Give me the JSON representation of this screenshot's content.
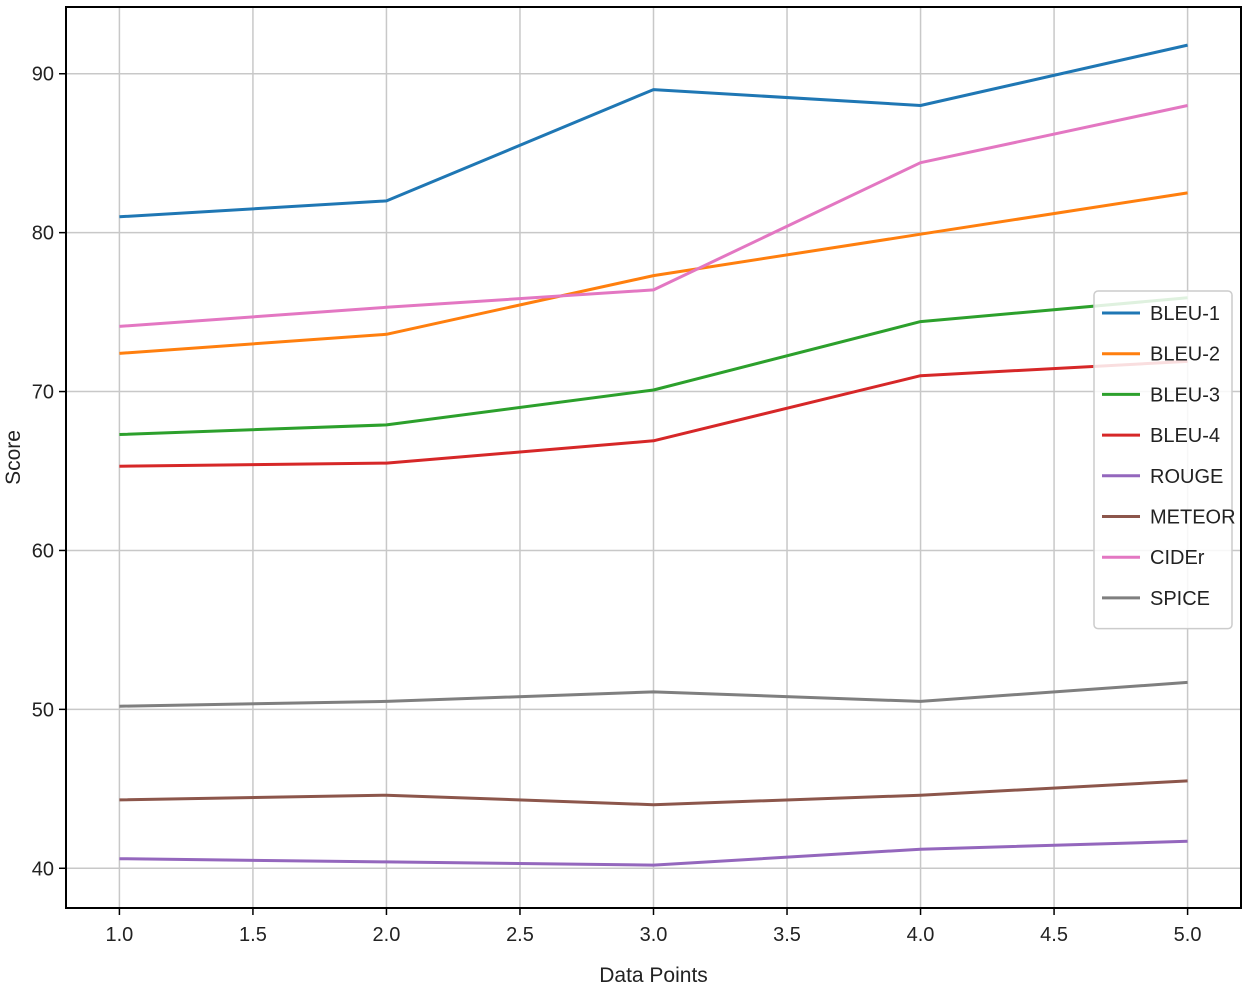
{
  "chart_data": {
    "type": "line",
    "title": "",
    "xlabel": "Data Points",
    "ylabel": "Score",
    "x": [
      1,
      2,
      3,
      4,
      5
    ],
    "xlim": [
      0.8,
      5.2
    ],
    "ylim": [
      37.5,
      94.2
    ],
    "xticks": [
      "1.0",
      "1.5",
      "2.0",
      "2.5",
      "3.0",
      "3.5",
      "4.0",
      "4.5",
      "5.0"
    ],
    "xtick_values": [
      1.0,
      1.5,
      2.0,
      2.5,
      3.0,
      3.5,
      4.0,
      4.5,
      5.0
    ],
    "yticks": [
      "40",
      "50",
      "60",
      "70",
      "80",
      "90"
    ],
    "ytick_values": [
      40,
      50,
      60,
      70,
      80,
      90
    ],
    "grid": true,
    "legend_position": "right",
    "series": [
      {
        "name": "BLEU-1",
        "color": "#1f77b4",
        "values": [
          81.0,
          82.0,
          89.0,
          88.0,
          91.8
        ]
      },
      {
        "name": "BLEU-2",
        "color": "#ff7f0e",
        "values": [
          72.4,
          73.6,
          77.3,
          79.9,
          82.5
        ]
      },
      {
        "name": "BLEU-3",
        "color": "#2ca02c",
        "values": [
          67.3,
          67.9,
          70.1,
          74.4,
          75.9
        ]
      },
      {
        "name": "BLEU-4",
        "color": "#d62728",
        "values": [
          65.3,
          65.5,
          66.9,
          71.0,
          71.9
        ]
      },
      {
        "name": "ROUGE",
        "color": "#9467bd",
        "values": [
          40.6,
          40.4,
          40.2,
          41.2,
          41.7
        ]
      },
      {
        "name": "METEOR",
        "color": "#8c564b",
        "values": [
          44.3,
          44.6,
          44.0,
          44.6,
          45.5
        ]
      },
      {
        "name": "CIDEr",
        "color": "#e377c2",
        "values": [
          74.1,
          75.3,
          76.4,
          84.4,
          88.0
        ]
      },
      {
        "name": "SPICE",
        "color": "#7f7f7f",
        "values": [
          50.2,
          50.5,
          51.1,
          50.5,
          51.7
        ]
      }
    ]
  }
}
